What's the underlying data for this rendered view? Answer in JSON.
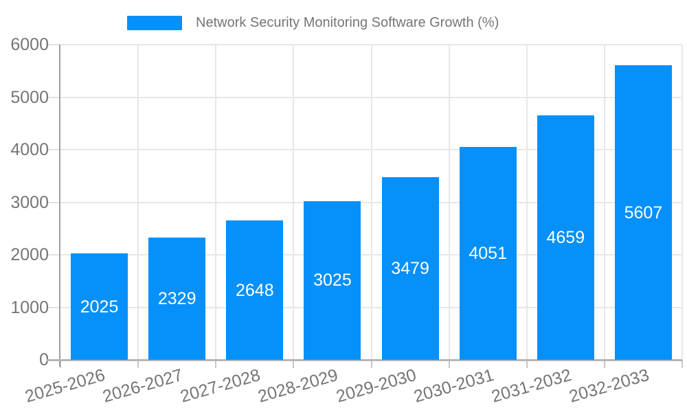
{
  "legend": {
    "label": "Network Security Monitoring Software Growth (%)"
  },
  "chart_data": {
    "type": "bar",
    "title": "Network Security Monitoring Software Growth (%)",
    "categories": [
      "2025-2026",
      "2026-2027",
      "2027-2028",
      "2028-2029",
      "2029-2030",
      "2030-2031",
      "2031-2032",
      "2032-2033"
    ],
    "values": [
      2025,
      2329,
      2648,
      3025,
      3479,
      4051,
      4659,
      5607
    ],
    "value_labels": [
      "2025",
      "2329",
      "2648",
      "3025",
      "3479",
      "4051",
      "4659",
      "5607"
    ],
    "xlabel": "",
    "ylabel": "",
    "ylim": [
      0,
      6000
    ],
    "yticks": [
      0,
      1000,
      2000,
      3000,
      4000,
      5000,
      6000
    ],
    "ytick_labels": [
      "0",
      "1000",
      "2000",
      "3000",
      "4000",
      "5000",
      "6000"
    ],
    "grid": true,
    "legend_position": "top-center",
    "colors": {
      "bar": "#0590fa",
      "value_label": "#ffffff",
      "axis_text": "#757575",
      "gridline": "#e7e7e7",
      "axis_line": "#9e9e9e",
      "background": "#ffffff"
    }
  }
}
